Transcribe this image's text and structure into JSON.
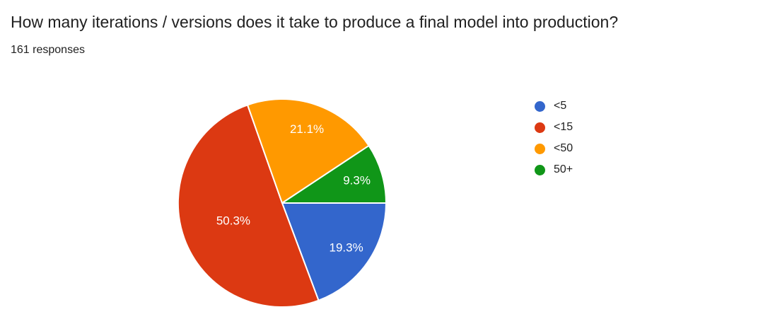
{
  "header": {
    "title": "How many iterations / versions does it take to produce a final model into production?",
    "subtitle": "161 responses"
  },
  "chart_data": {
    "type": "pie",
    "title": "How many iterations / versions does it take to produce a final model into production?",
    "subtitle": "161 responses",
    "total_responses": 161,
    "categories": [
      "<5",
      "<15",
      "<50",
      "50+"
    ],
    "values": [
      19.3,
      50.3,
      21.1,
      9.3
    ],
    "slice_labels": [
      "19.3%",
      "50.3%",
      "21.1%",
      "9.3%"
    ],
    "colors": [
      "#3366CC",
      "#DC3912",
      "#FF9900",
      "#109618"
    ],
    "start_angle_deg": 90,
    "direction": "clockwise",
    "legend_position": "right",
    "slice_label_color": "#FFFFFF",
    "slice_border_color": "#FFFFFF"
  }
}
